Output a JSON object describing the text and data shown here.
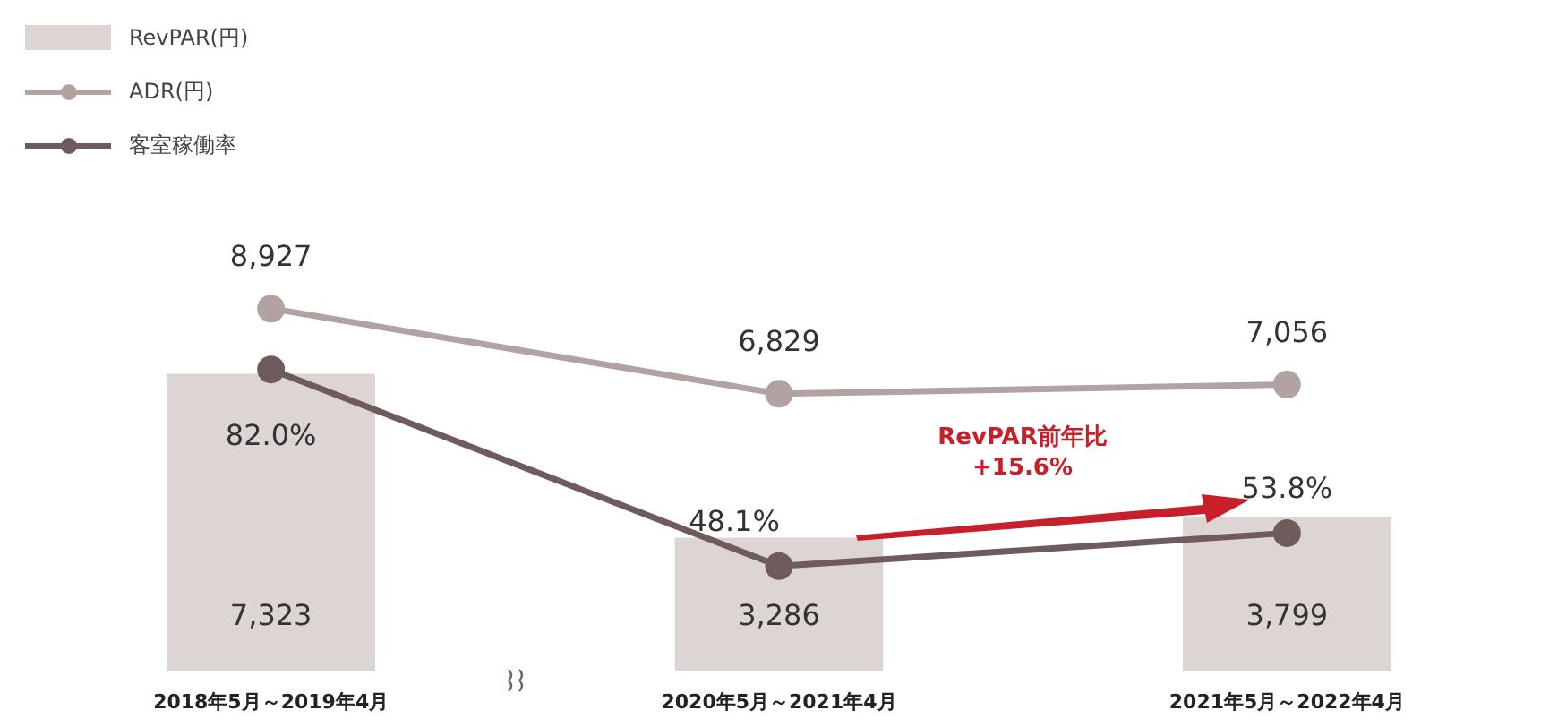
{
  "chart_data": {
    "type": "bar",
    "categories": [
      "2018年5月～2019年4月",
      "2020年5月～2021年4月",
      "2021年5月～2022年4月"
    ],
    "series": [
      {
        "name": "RevPAR(円)",
        "color": "#dcd5d3",
        "values": [
          7323,
          3286,
          3799
        ],
        "value_labels": [
          "7,323",
          "3,286",
          "3,799"
        ]
      },
      {
        "name": "ADR(円)",
        "type": "line",
        "color": "#b3a2a2",
        "values": [
          8927,
          6829,
          7056
        ],
        "value_labels": [
          "8,927",
          "6,829",
          "7,056"
        ]
      },
      {
        "name": "客室稼働率",
        "type": "line",
        "color": "#6f5b5b",
        "axis": "y2",
        "values": [
          82.0,
          48.1,
          53.8
        ],
        "value_labels": [
          "82.0%",
          "48.1%",
          "53.8%"
        ]
      }
    ],
    "tick_labels": "x",
    "grid": false,
    "legend": "top left",
    "marker": "circle",
    "annotations": [
      "RevPAR前年比 +15.6%"
    ]
  }
}
